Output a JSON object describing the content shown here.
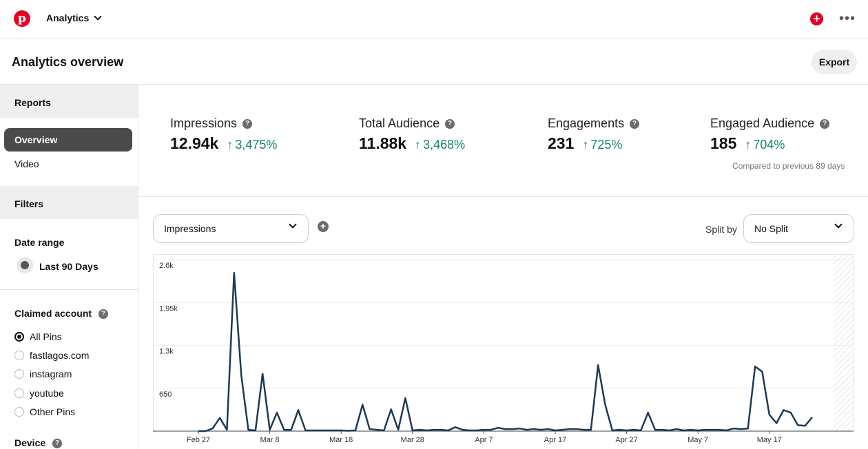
{
  "app": {
    "logo_letter": "p",
    "nav_label": "Analytics",
    "add_icon": "plus-circle-icon",
    "more_icon": "more-horizontal-icon"
  },
  "header": {
    "title": "Analytics overview",
    "export_label": "Export"
  },
  "sidebar": {
    "reports_heading": "Reports",
    "report_items": [
      {
        "label": "Overview",
        "active": true
      },
      {
        "label": "Video",
        "active": false
      }
    ],
    "filters_heading": "Filters",
    "date_range_label": "Date range",
    "date_range_value": "Last 90 Days",
    "claimed_account_label": "Claimed account",
    "claimed_accounts": [
      {
        "label": "All Pins",
        "selected": true
      },
      {
        "label": "fastlagos.com",
        "selected": false
      },
      {
        "label": "instagram",
        "selected": false
      },
      {
        "label": "youtube",
        "selected": false
      },
      {
        "label": "Other Pins",
        "selected": false
      }
    ],
    "device_label": "Device"
  },
  "metrics": [
    {
      "label": "Impressions",
      "value": "12.94k",
      "change": "3,475%"
    },
    {
      "label": "Total Audience",
      "value": "11.88k",
      "change": "3,468%"
    },
    {
      "label": "Engagements",
      "value": "231",
      "change": "725%"
    },
    {
      "label": "Engaged Audience",
      "value": "185",
      "change": "704%"
    }
  ],
  "compare_note": "Compared to previous 89 days",
  "controls": {
    "metric_select": "Impressions",
    "split_by_label": "Split by",
    "split_select": "No Split"
  },
  "colors": {
    "brand": "#e60023",
    "positive": "#0f8a5f",
    "line": "#1b3a57"
  },
  "chart_data": {
    "type": "line",
    "ylim": [
      0,
      2600
    ],
    "yticks": [
      "2.6k",
      "1.95k",
      "1.3k",
      "650"
    ],
    "ytick_values": [
      2600,
      1950,
      1300,
      650
    ],
    "xtick_labels": [
      "Feb 27",
      "Mar 8",
      "Mar 18",
      "Mar 28",
      "Apr 7",
      "Apr 17",
      "Apr 27",
      "May 7",
      "May 17"
    ],
    "xtick_index": [
      0,
      10,
      20,
      30,
      40,
      50,
      60,
      70,
      80
    ],
    "grid": true,
    "series": [
      {
        "values": [
          0,
          0,
          40,
          200,
          20,
          2400,
          850,
          20,
          10,
          870,
          20,
          280,
          20,
          20,
          320,
          10,
          10,
          10,
          10,
          10,
          10,
          5,
          10,
          400,
          30,
          20,
          10,
          330,
          20,
          500,
          10,
          20,
          10,
          20,
          20,
          10,
          60,
          20,
          10,
          10,
          20,
          20,
          50,
          30,
          30,
          40,
          20,
          30,
          20,
          30,
          10,
          20,
          30,
          30,
          20,
          20,
          1000,
          400,
          10,
          20,
          10,
          20,
          10,
          280,
          20,
          20,
          10,
          30,
          10,
          20,
          10,
          20,
          20,
          20,
          10,
          40,
          30,
          40,
          980,
          900,
          250,
          120,
          320,
          280,
          90,
          80,
          210
        ]
      }
    ]
  }
}
